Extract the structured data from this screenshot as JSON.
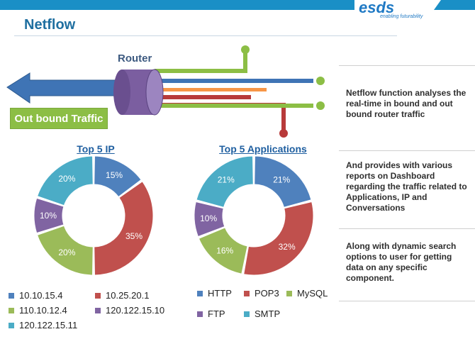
{
  "slide": {
    "title": "Netflow",
    "logo_text": "esds",
    "logo_tagline": "enabling futurability"
  },
  "diagram": {
    "router_label": "Router",
    "outbound_label": "Out bound Traffic"
  },
  "colors": {
    "blue": "#4f81bd",
    "red": "#c0504d",
    "green": "#9bbb59",
    "purple": "#8064a2",
    "cyan": "#4bacc6",
    "orange": "#f79646"
  },
  "chart_data": [
    {
      "type": "pie",
      "variant": "donut",
      "title": "Top 5 IP",
      "categories": [
        "10.10.15.4",
        "10.25.20.1",
        "110.10.12.4",
        "120.122.15.10",
        "120.122.15.11"
      ],
      "values": [
        15,
        35,
        20,
        10,
        20
      ],
      "labels": [
        "15%",
        "35%",
        "20%",
        "10%",
        "20%"
      ],
      "colors": [
        "#4f81bd",
        "#c0504d",
        "#9bbb59",
        "#8064a2",
        "#4bacc6"
      ],
      "legend": "bottom"
    },
    {
      "type": "pie",
      "variant": "donut",
      "title": "Top 5 Applications",
      "categories": [
        "HTTP",
        "POP3",
        "MySQL",
        "FTP",
        "SMTP"
      ],
      "values": [
        21,
        32,
        16,
        10,
        21
      ],
      "labels": [
        "21%",
        "32%",
        "16%",
        "10%",
        "21%"
      ],
      "colors": [
        "#4f81bd",
        "#c0504d",
        "#9bbb59",
        "#8064a2",
        "#4bacc6"
      ],
      "legend": "bottom"
    }
  ],
  "side_notes": [
    "Netflow function analyses the real-time in bound and out bound router traffic",
    "And provides with various reports on Dashboard regarding the traffic related to Applications, IP and Conversations",
    "Along with dynamic search options to user for getting data on any specific component."
  ]
}
